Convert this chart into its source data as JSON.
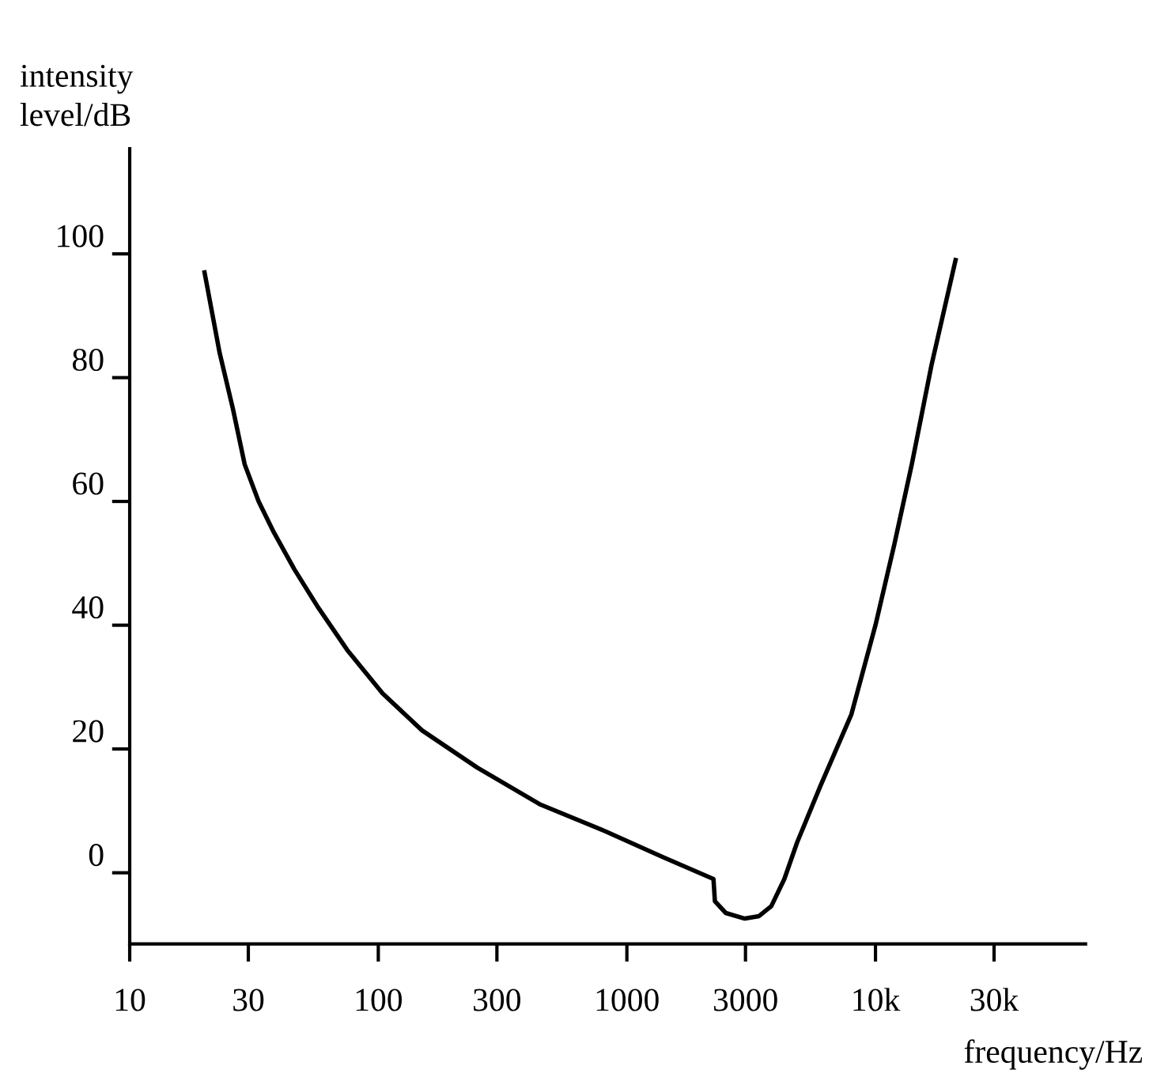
{
  "chart_data": {
    "type": "line",
    "xlabel": "frequency/Hz",
    "ylabel": "intensity\nlevel/dB",
    "x": [
      20,
      23,
      26,
      29,
      33,
      38,
      46,
      57,
      75,
      104,
      150,
      250,
      450,
      820,
      1400,
      2230,
      2260,
      2500,
      2980,
      3400,
      3810,
      4300,
      4840,
      6000,
      8000,
      10000,
      11900,
      14000,
      16800,
      21000
    ],
    "series": [
      {
        "color": "#000000",
        "values": [
          97,
          84,
          75,
          66,
          60,
          55,
          49,
          43,
          36,
          29,
          23,
          17,
          11,
          6.7,
          2.5,
          -1,
          -4.6,
          -6.5,
          -7.4,
          -7,
          -5.4,
          -1,
          4.9,
          14,
          25.6,
          40,
          53,
          66,
          82,
          99
        ]
      }
    ],
    "xlim": [
      10,
      70000
    ],
    "log": "x",
    "xticks": [
      10,
      30,
      100,
      300,
      1000,
      3000,
      {
        "value": 10000,
        "label": "10k"
      },
      {
        "value": 30000,
        "label": "30k"
      }
    ],
    "ylim": [
      -11.5,
      117
    ],
    "yticks": [
      0,
      20,
      40,
      60,
      80,
      100
    ],
    "grid": false,
    "marker": "none",
    "line_style": "solid"
  }
}
